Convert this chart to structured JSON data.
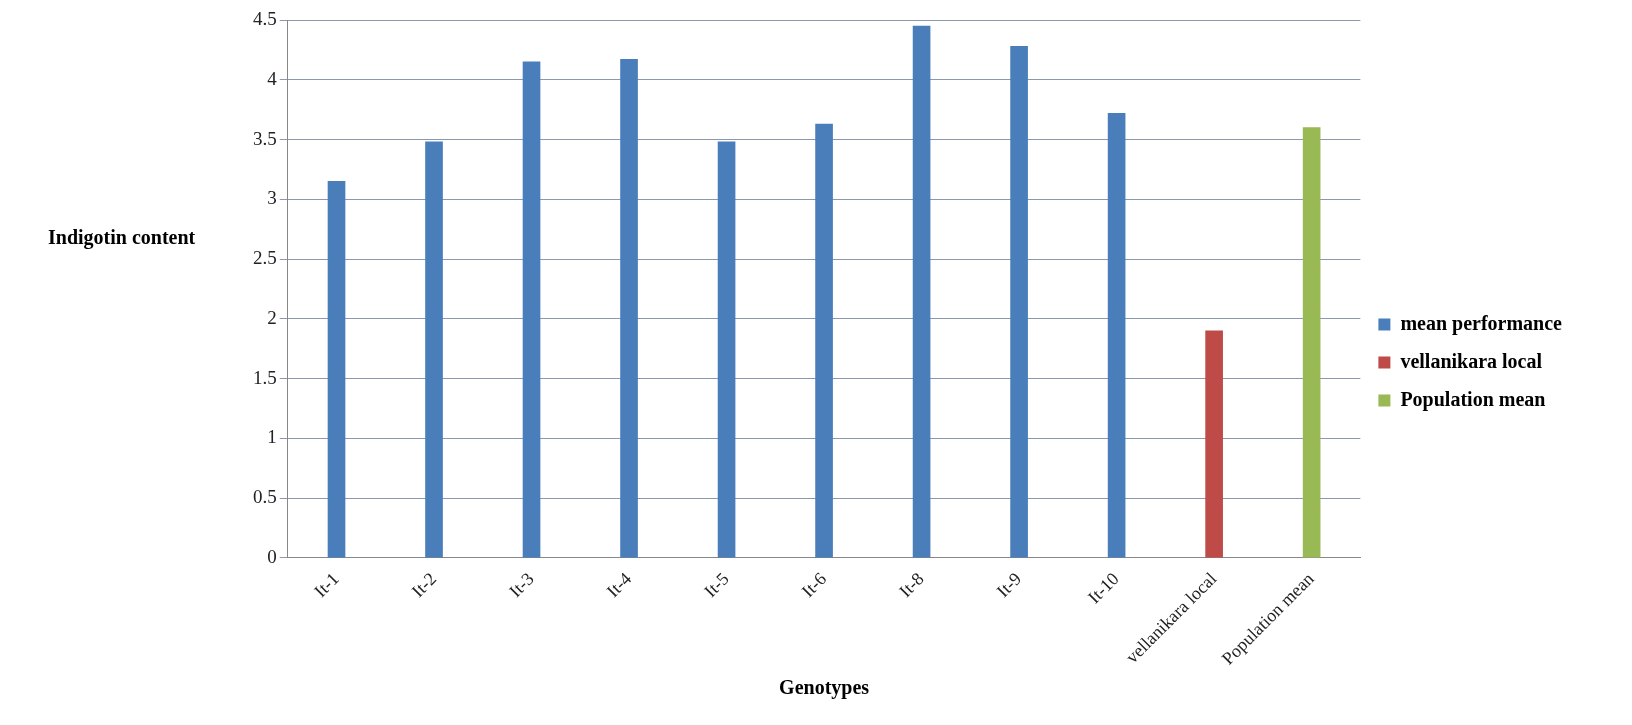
{
  "chart_data": {
    "type": "bar",
    "xlabel": "Genotypes",
    "ylabel": "Indigotin content",
    "categories": [
      "It-1",
      "It-2",
      "It-3",
      "It-4",
      "It-5",
      "It-6",
      "It-8",
      "It-9",
      "It-10",
      "vellanikara local",
      "Population mean"
    ],
    "series": [
      {
        "name": "mean performance",
        "color": "#4a7ebb",
        "values": [
          3.15,
          3.48,
          4.15,
          4.17,
          3.48,
          3.63,
          4.45,
          4.28,
          3.72,
          null,
          null
        ]
      },
      {
        "name": "vellanikara local",
        "color": "#be4b48",
        "values": [
          null,
          null,
          null,
          null,
          null,
          null,
          null,
          null,
          null,
          1.9,
          null
        ]
      },
      {
        "name": "Population mean",
        "color": "#98b954",
        "values": [
          null,
          null,
          null,
          null,
          null,
          null,
          null,
          null,
          null,
          null,
          3.6
        ]
      }
    ],
    "ylim": [
      0,
      4.5
    ],
    "yticks": [
      0,
      0.5,
      1,
      1.5,
      2,
      2.5,
      3,
      3.5,
      4,
      4.5
    ],
    "grid": "y",
    "legend": "right"
  }
}
